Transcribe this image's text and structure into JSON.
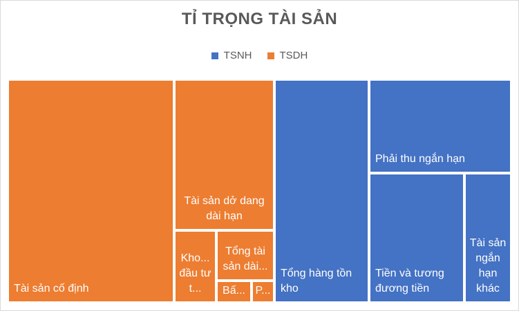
{
  "chart_data": {
    "type": "treemap",
    "title": "TỈ TRỌNG TÀI SẢN",
    "legend": [
      {
        "name": "TSNH",
        "color": "#4472c4"
      },
      {
        "name": "TSDH",
        "color": "#ed7d31"
      }
    ],
    "legend_position": "top",
    "items": [
      {
        "label": "Tài sản cố định",
        "group": "TSDH"
      },
      {
        "label": "Tài sản dở dang dài hạn",
        "group": "TSDH"
      },
      {
        "label": "Kho... đầu tư t...",
        "group": "TSDH"
      },
      {
        "label": "Tổng tài sản dài...",
        "group": "TSDH"
      },
      {
        "label": "Bấ...",
        "group": "TSDH"
      },
      {
        "label": "P...",
        "group": "TSDH"
      },
      {
        "label": "Tổng hàng tồn kho",
        "group": "TSNH"
      },
      {
        "label": "Phải thu ngắn hạn",
        "group": "TSNH"
      },
      {
        "label": "Tiền và tương đương tiền",
        "group": "TSNH"
      },
      {
        "label": "Tài sản ngắn hạn khác",
        "group": "TSNH"
      }
    ]
  }
}
